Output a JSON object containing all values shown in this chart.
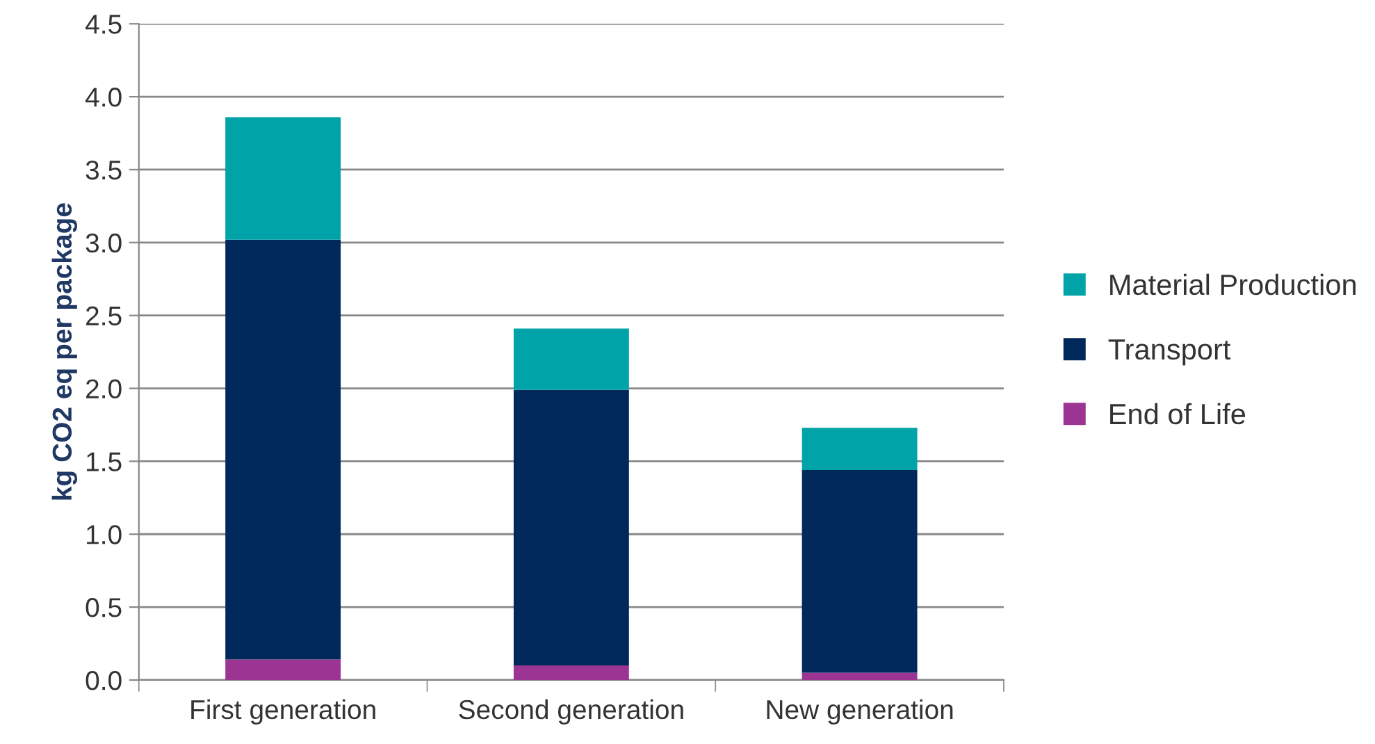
{
  "chart_data": {
    "type": "bar",
    "stacked": true,
    "ylabel": "kg CO2 eq per package",
    "categories": [
      "First generation",
      "Second generation",
      "New generation"
    ],
    "series": [
      {
        "name": "End of Life",
        "color": "#9b3493",
        "values": [
          0.14,
          0.1,
          0.05
        ]
      },
      {
        "name": "Transport",
        "color": "#00285a",
        "values": [
          2.88,
          1.89,
          1.39
        ]
      },
      {
        "name": "Material Production",
        "color": "#00a3a8",
        "values": [
          0.84,
          0.42,
          0.29
        ]
      }
    ],
    "ylim": [
      0,
      4.5
    ],
    "yticks": [
      {
        "value": 0,
        "label": "0.0"
      },
      {
        "value": 0.5,
        "label": "0.5"
      },
      {
        "value": 1,
        "label": "1.0"
      },
      {
        "value": 1.5,
        "label": "1.5"
      },
      {
        "value": 2,
        "label": "2.0"
      },
      {
        "value": 2.5,
        "label": "2.5"
      },
      {
        "value": 3,
        "label": "3.0"
      },
      {
        "value": 3.5,
        "label": "3.5"
      },
      {
        "value": 4,
        "label": "4.0"
      },
      {
        "value": 4.5,
        "label": "4.5"
      }
    ],
    "grid": "y",
    "legend": "right"
  }
}
